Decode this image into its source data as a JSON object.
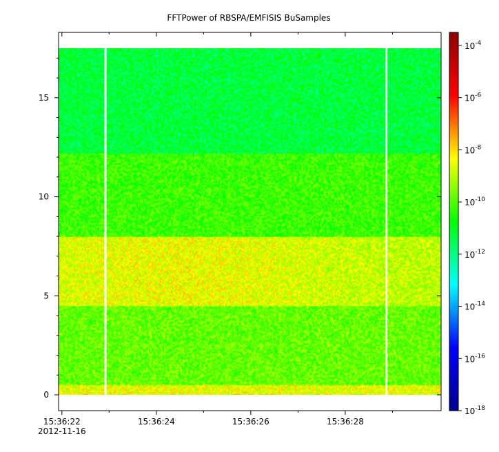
{
  "chart_data": {
    "type": "heatmap",
    "title": "FFTPower of RBSPA/EMFISIS  BuSamples",
    "xlabel": "",
    "ylabel": "",
    "x_start_date": "2012-11-16",
    "x_ticks": [
      {
        "t": 22,
        "label": "15:36:22",
        "sublabel": "2012-11-16"
      },
      {
        "t": 24,
        "label": "15:36:24",
        "sublabel": ""
      },
      {
        "t": 26,
        "label": "15:36:26",
        "sublabel": ""
      },
      {
        "t": 28,
        "label": "15:36:28",
        "sublabel": ""
      }
    ],
    "x_minor_ticks": [
      23,
      25,
      27,
      29
    ],
    "xlim": [
      "15:36:21.93",
      "15:36:30.03"
    ],
    "ylim": [
      -0.8,
      18.3
    ],
    "y_ticks": [
      0,
      5,
      10,
      15
    ],
    "y_tick_labels": [
      "0",
      "5",
      "10",
      "15"
    ],
    "data_time_range": [
      "15:36:21.93",
      "15:36:30.03"
    ],
    "data_freq_range": [
      0,
      17.5
    ],
    "gaps": [
      {
        "start": "15:36:22.90",
        "end": "15:36:22.94"
      },
      {
        "start": "15:36:28.85",
        "end": "15:36:28.89"
      }
    ],
    "power_bands": [
      {
        "freq_from": 0,
        "freq_to": 0.5,
        "log10_power": -8.5
      },
      {
        "freq_from": 0.5,
        "freq_to": 4.5,
        "log10_power": -9.8
      },
      {
        "freq_from": 4.5,
        "freq_to": 8.0,
        "log10_power": -8.7
      },
      {
        "freq_from": 8.0,
        "freq_to": 12.2,
        "log10_power": -10.2
      },
      {
        "freq_from": 12.2,
        "freq_to": 17.5,
        "log10_power": -11.3
      }
    ],
    "colorbar": {
      "scale": "log",
      "range": [
        -18,
        -3.5
      ],
      "ticks": [
        {
          "exp": -4,
          "label": "10",
          "sup": "-4"
        },
        {
          "exp": -6,
          "label": "10",
          "sup": "-6"
        },
        {
          "exp": -8,
          "label": "10",
          "sup": "-8"
        },
        {
          "exp": -10,
          "label": "10",
          "sup": "-10"
        },
        {
          "exp": -12,
          "label": "10",
          "sup": "-12"
        },
        {
          "exp": -14,
          "label": "10",
          "sup": "-14"
        },
        {
          "exp": -16,
          "label": "10",
          "sup": "-16"
        },
        {
          "exp": -18,
          "label": "10",
          "sup": "-18"
        }
      ],
      "colors": [
        "#00008f",
        "#0000ff",
        "#00ffff",
        "#00ff00",
        "#ffff00",
        "#ff0000",
        "#8f0000"
      ]
    },
    "grid": false
  }
}
